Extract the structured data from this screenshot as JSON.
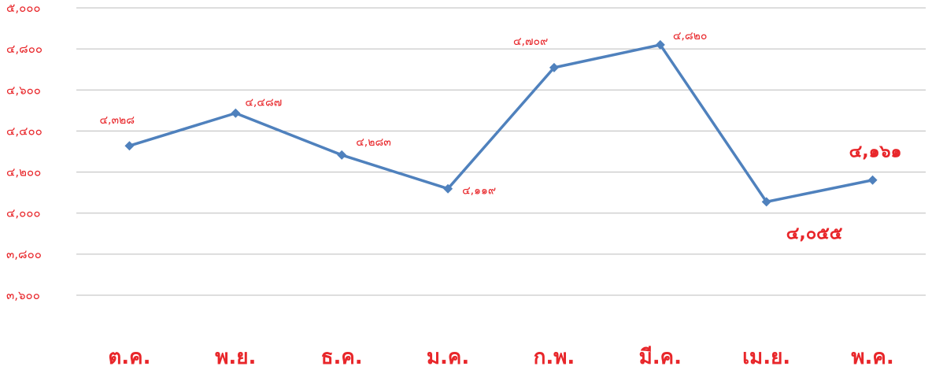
{
  "chart_data": {
    "type": "line",
    "categories": [
      "ต.ค.",
      "พ.ย.",
      "ธ.ค.",
      "ม.ค.",
      "ก.พ.",
      "มี.ค.",
      "เม.ย.",
      "พ.ค."
    ],
    "values": [
      4328,
      4487,
      4283,
      4119,
      4709,
      4820,
      4055,
      4161
    ],
    "data_labels": [
      "๔,๓๒๘",
      "๔,๔๘๗",
      "๔,๒๘๓",
      "๔,๑๑๙",
      "๔,๗๐๙",
      "๔,๘๒๐",
      "๔,๐๕๕",
      "๔,๑๖๑"
    ],
    "ylim": [
      3600,
      5000
    ],
    "yticks": [
      3600,
      3800,
      4000,
      4200,
      4400,
      4600,
      4800,
      5000
    ],
    "ytick_labels": [
      "๓,๖๐๐",
      "๓,๘๐๐",
      "๔,๐๐๐",
      "๔,๒๐๐",
      "๔,๔๐๐",
      "๔,๖๐๐",
      "๔,๘๐๐",
      "๕,๐๐๐"
    ],
    "grid": true,
    "title": "",
    "xlabel": "",
    "ylabel": "",
    "line_color": "#4f81bd",
    "label_color": "#e8262a",
    "grid_color": "#bcbcbc"
  }
}
